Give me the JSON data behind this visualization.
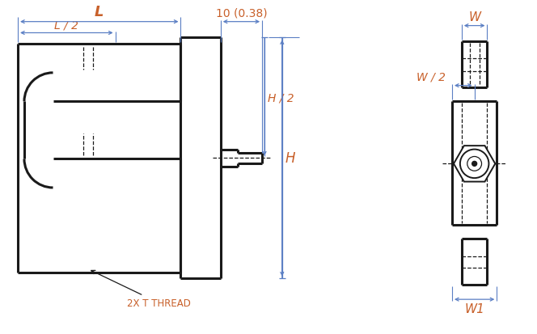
{
  "bg_color": "#ffffff",
  "line_color": "#1a1a1a",
  "dim_color": "#5b7fc4",
  "ann_color": "#c8602a",
  "fig_width": 6.64,
  "fig_height": 4.14,
  "dpi": 100,
  "annotations": {
    "L": "L",
    "L2": "L / 2",
    "dim_10": "10 (0.38)",
    "H2": "H / 2",
    "H": "H",
    "W": "W",
    "W2": "W / 2",
    "W1": "W1",
    "thread": "2X T THREAD"
  }
}
